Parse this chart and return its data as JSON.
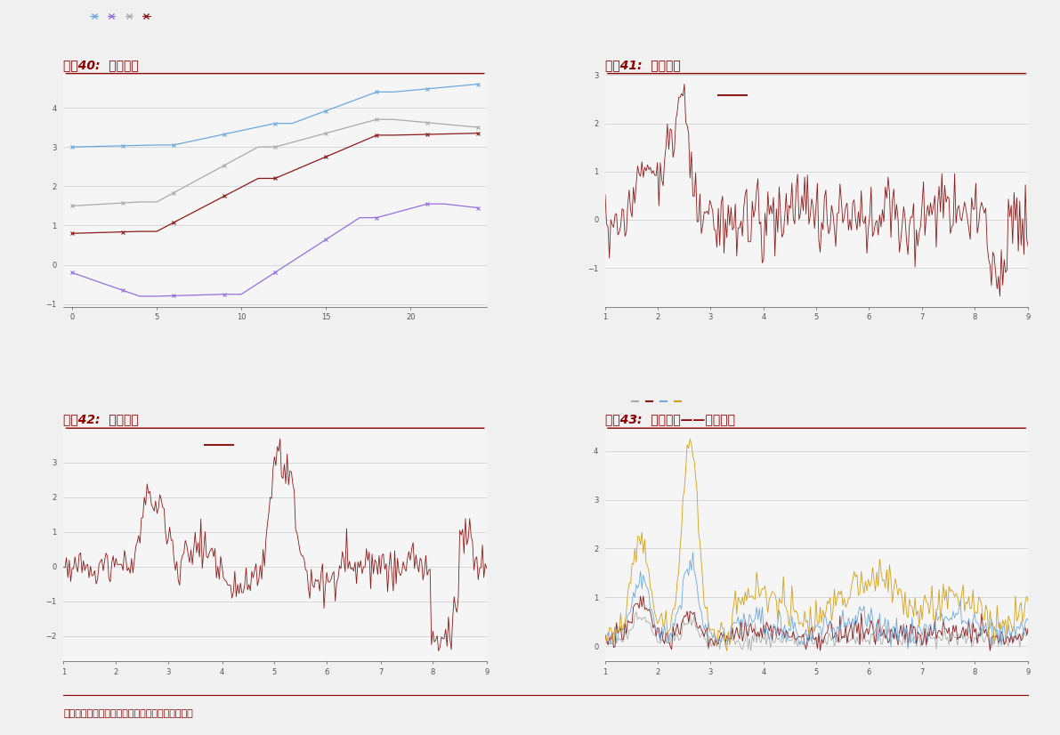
{
  "title40": "图表40:  期限结构",
  "title41": "图表41:  期限利差",
  "title42": "图表42:  信用利差",
  "title43": "图表43:  信用利差——不同评级",
  "title_color": "#8B0000",
  "title_fontsize": 10,
  "bg_color": "#f0f0f0",
  "plot_bg": "#f5f5f5",
  "line_color_dark_red": "#8B1a1a",
  "grid_color": "#cccccc",
  "ax40_line_colors": [
    "#6fa8dc",
    "#9370DB",
    "#aaaaaa",
    "#8B1a1a"
  ],
  "ax43_line_colors": [
    "#aaaaaa",
    "#8B1a1a",
    "#6fa8dc",
    "#D4A017"
  ],
  "footer": "资料来源：彭博资讯，万得资讯，中金公司研究部",
  "footer_color": "#8B0000",
  "footer_fontsize": 8,
  "sep_line_color": "#8B0000",
  "tick_color": "#555555",
  "tick_fontsize": 6
}
